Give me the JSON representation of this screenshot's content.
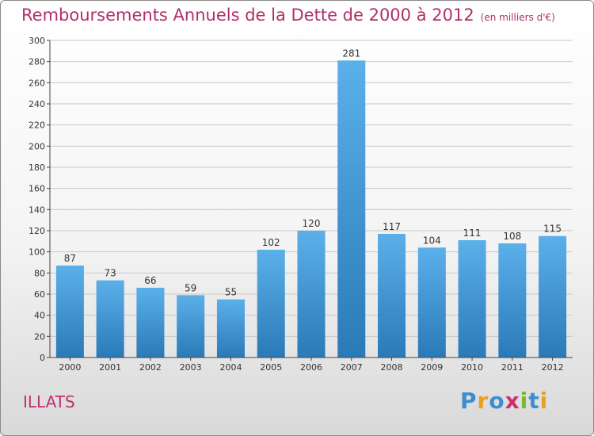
{
  "title": "Remboursements Annuels de la Dette de 2000 à 2012",
  "unit": "(en milliers d'€)",
  "commune": "ILLATS",
  "logo": {
    "letters": [
      "P",
      "r",
      "o",
      "x",
      "i",
      "t",
      "i"
    ],
    "colors": [
      "#3b8fd0",
      "#e8a020",
      "#3b8fd0",
      "#d02f6a",
      "#7ab833",
      "#3b8fd0",
      "#e8a020"
    ]
  },
  "colors": {
    "bar_top": "#5bb0ea",
    "bar_bottom": "#2a7ab8",
    "title": "#b0306b",
    "grid": "#c8c8c8"
  },
  "chart_data": {
    "type": "bar",
    "title": "Remboursements Annuels de la Dette de 2000 à 2012",
    "xlabel": "",
    "ylabel": "",
    "ylim": [
      0,
      300
    ],
    "yticks": [
      0,
      20,
      40,
      60,
      80,
      100,
      120,
      140,
      160,
      180,
      200,
      220,
      240,
      260,
      280,
      300
    ],
    "grid": true,
    "categories": [
      "2000",
      "2001",
      "2002",
      "2003",
      "2004",
      "2005",
      "2006",
      "2007",
      "2008",
      "2009",
      "2010",
      "2011",
      "2012"
    ],
    "values": [
      87,
      73,
      66,
      59,
      55,
      102,
      120,
      281,
      117,
      104,
      111,
      108,
      115
    ]
  }
}
